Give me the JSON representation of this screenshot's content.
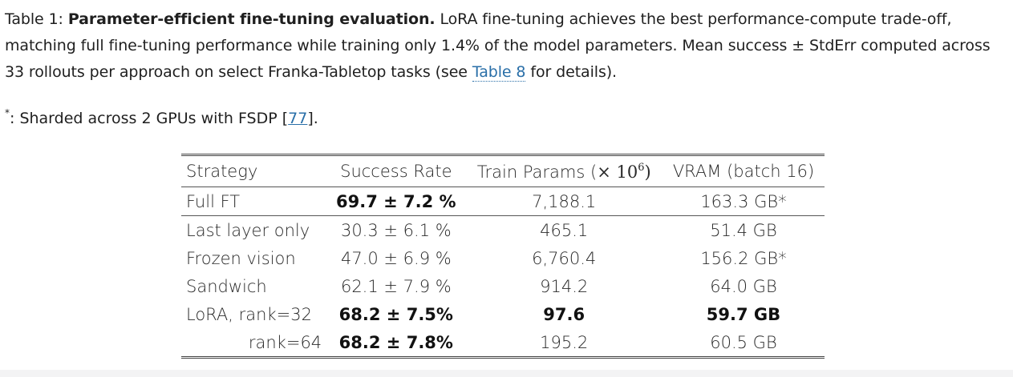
{
  "caption": {
    "label": "Table 1:",
    "title": "Parameter-efficient fine-tuning evaluation.",
    "text": "LoRA fine-tuning achieves the best performance-compute trade-off, matching full fine-tuning performance while training only 1.4% of the model parameters. Mean success ± StdErr computed across 33 rollouts per approach on select Franka-Tabletop tasks (see",
    "link_text": "Table 8",
    "text_end": "for details)."
  },
  "footnote": {
    "marker": "*",
    "text_start": ": Sharded across 2 GPUs with FSDP [",
    "cite": "77",
    "text_end": "]."
  },
  "table": {
    "headers": {
      "strategy": "Strategy",
      "success": "Success Rate",
      "params_prefix": "Train Params (",
      "params_math": "× 10",
      "params_exp": "6",
      "params_suffix": ")",
      "vram": "VRAM (batch 16)"
    },
    "rows": [
      {
        "strategy": "Full FT",
        "success": "69.7 ± 7.2 %",
        "params": "7,188.1",
        "vram": "163.3 GB*"
      },
      {
        "strategy": "Last layer only",
        "success": "30.3 ± 6.1 %",
        "params": "465.1",
        "vram": "51.4 GB"
      },
      {
        "strategy": "Frozen vision",
        "success": "47.0 ± 6.9 %",
        "params": "6,760.4",
        "vram": "156.2 GB*"
      },
      {
        "strategy": "Sandwich",
        "success": "62.1 ± 7.9 %",
        "params": "914.2",
        "vram": "64.0 GB"
      },
      {
        "strategy": "LoRA, rank=32",
        "success": "68.2 ± 7.5%",
        "params": "97.6",
        "vram": "59.7 GB"
      },
      {
        "strategy": "rank=64",
        "success": "68.2 ± 7.8%",
        "params": "195.2",
        "vram": "60.5 GB"
      }
    ]
  }
}
